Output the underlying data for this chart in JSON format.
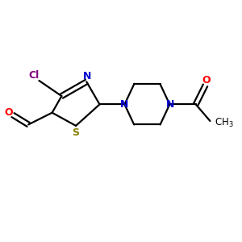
{
  "bg_color": "#ffffff",
  "atom_colors": {
    "C": "#000000",
    "N": "#0000cd",
    "O": "#ff0000",
    "S": "#8B8000",
    "Cl": "#800080"
  },
  "bond_color": "#000000",
  "figsize": [
    3.0,
    3.0
  ],
  "dpi": 100,
  "xlim": [
    0,
    10
  ],
  "ylim": [
    0,
    10
  ]
}
